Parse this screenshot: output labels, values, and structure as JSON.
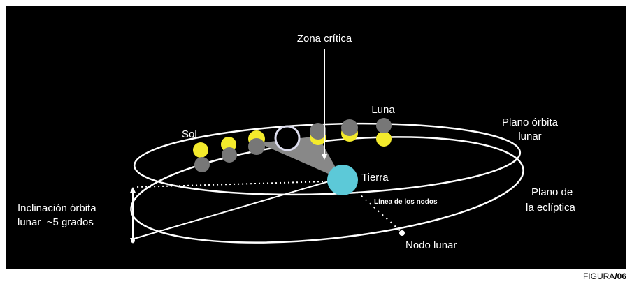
{
  "labels": {
    "zona_critica": "Zona crítica",
    "luna": "Luna",
    "sol": "Sol",
    "plano_orbita_lunar": [
      "Plano órbita",
      "lunar"
    ],
    "tierra": "Tierra",
    "plano_ecliptica": [
      "Plano de",
      "la eclíptica"
    ],
    "linea_nodos": "Línea de los nodos",
    "inclinacion": [
      "Inclinación órbita",
      "lunar  ~5 grados"
    ],
    "nodo_lunar": "Nodo lunar"
  },
  "figura": {
    "prefix": "FIGURA",
    "number": "/06"
  }
}
